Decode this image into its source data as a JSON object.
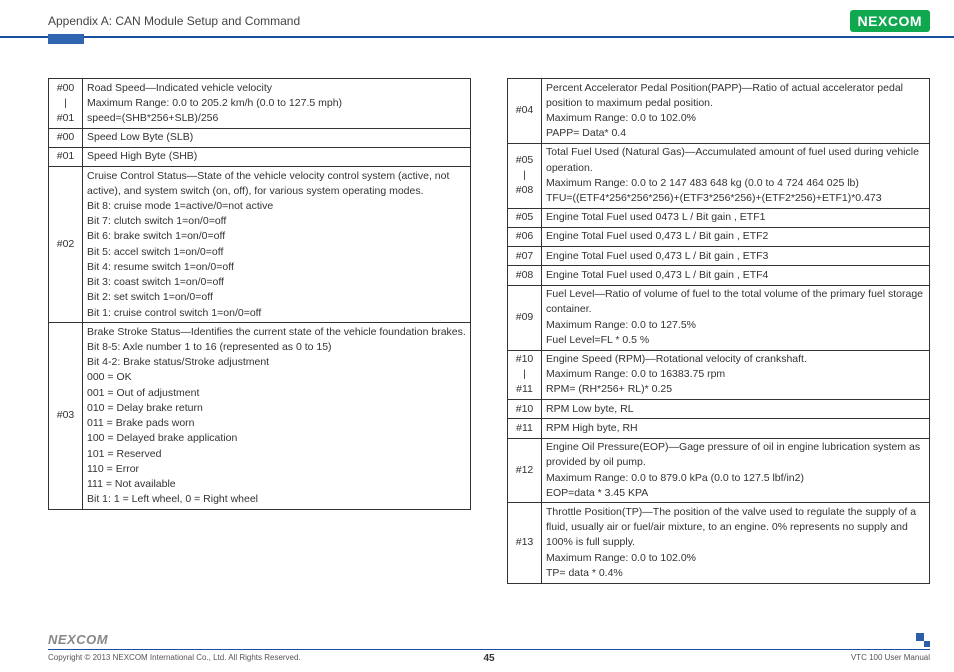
{
  "header": {
    "title": "Appendix A: CAN Module Setup and Command",
    "logo_text": "NE COM",
    "logo_x": "X"
  },
  "left_table": [
    {
      "id": "#00\n|\n#01",
      "lines": [
        "Road Speed—Indicated vehicle velocity",
        "Maximum Range: 0.0 to 205.2 km/h (0.0 to 127.5 mph)",
        "speed=(SHB*256+SLB)/256"
      ]
    },
    {
      "id": "#00",
      "lines": [
        "Speed Low Byte (SLB)"
      ]
    },
    {
      "id": "#01",
      "lines": [
        "Speed High Byte (SHB)"
      ]
    },
    {
      "id": "#02",
      "lines": [
        "Cruise Control Status—State of the vehicle velocity control system (active, not active), and system switch (on, off), for various system operating modes.",
        "Bit 8: cruise mode 1=active/0=not active",
        "Bit 7: clutch switch 1=on/0=off",
        "Bit 6: brake switch 1=on/0=off",
        "Bit 5: accel switch 1=on/0=off",
        "Bit 4: resume switch 1=on/0=off",
        "Bit 3: coast switch 1=on/0=off",
        "Bit 2: set switch 1=on/0=off",
        "Bit 1: cruise control switch 1=on/0=off"
      ]
    },
    {
      "id": "#03",
      "lines": [
        "Brake Stroke Status—Identifies the current state of the vehicle foundation brakes.",
        "Bit 8-5: Axle number 1 to 16 (represented as 0 to 15)",
        "Bit 4-2: Brake status/Stroke adjustment",
        "000 = OK",
        "001 = Out of adjustment",
        "010 = Delay brake return",
        "011 = Brake pads worn",
        "100 = Delayed brake application",
        "101 = Reserved",
        "110 = Error",
        "111 = Not available",
        "Bit 1: 1 = Left wheel, 0 = Right wheel"
      ]
    }
  ],
  "right_table": [
    {
      "id": "#04",
      "lines": [
        "Percent Accelerator Pedal Position(PAPP)—Ratio of actual accelerator pedal position to maximum pedal position.",
        "Maximum Range: 0.0 to 102.0%",
        "PAPP= Data* 0.4"
      ]
    },
    {
      "id": "#05\n|\n#08",
      "lines": [
        "Total Fuel Used (Natural Gas)—Accumulated amount of fuel used during vehicle operation.",
        "Maximum Range: 0.0 to 2 147 483 648 kg (0.0 to 4 724 464 025 lb)",
        "TFU=((ETF4*256*256*256)+(ETF3*256*256)+(ETF2*256)+ETF1)*0.473"
      ]
    },
    {
      "id": "#05",
      "lines": [
        "Engine Total Fuel used 0473 L / Bit gain , ETF1"
      ]
    },
    {
      "id": "#06",
      "lines": [
        "Engine Total Fuel used 0,473 L / Bit gain , ETF2"
      ]
    },
    {
      "id": "#07",
      "lines": [
        "Engine Total Fuel used 0,473 L / Bit gain , ETF3"
      ]
    },
    {
      "id": "#08",
      "lines": [
        "Engine Total Fuel used 0,473 L / Bit gain , ETF4"
      ]
    },
    {
      "id": "#09",
      "lines": [
        "Fuel Level—Ratio of volume of fuel to the total volume of the primary fuel storage container.",
        "Maximum Range: 0.0 to 127.5%",
        "Fuel Level=FL * 0.5 %"
      ]
    },
    {
      "id": "#10\n|\n#11",
      "lines": [
        "Engine Speed (RPM)—Rotational velocity of crankshaft.",
        "Maximum Range: 0.0 to 16383.75 rpm",
        "RPM= (RH*256+ RL)* 0.25"
      ]
    },
    {
      "id": "#10",
      "lines": [
        "RPM Low byte, RL"
      ]
    },
    {
      "id": "#11",
      "lines": [
        "RPM High byte, RH"
      ]
    },
    {
      "id": "#12",
      "lines": [
        "Engine Oil Pressure(EOP)—Gage pressure of oil in engine lubrication system as provided by oil pump.",
        "Maximum Range: 0.0 to 879.0 kPa (0.0 to 127.5 lbf/in2)",
        "EOP=data * 3.45 KPA"
      ]
    },
    {
      "id": "#13",
      "lines": [
        "Throttle Position(TP)—The position of the valve used to regulate the supply of a fluid, usually air or fuel/air mixture, to an engine. 0% represents no supply and 100% is full supply.",
        "Maximum Range: 0.0 to 102.0%",
        "TP= data * 0.4%"
      ]
    }
  ],
  "footer": {
    "logo_text": "NEXCOM",
    "copyright": "Copyright © 2013 NEXCOM International Co., Ltd. All Rights Reserved.",
    "page": "45",
    "doc": "VTC 100 User Manual"
  }
}
